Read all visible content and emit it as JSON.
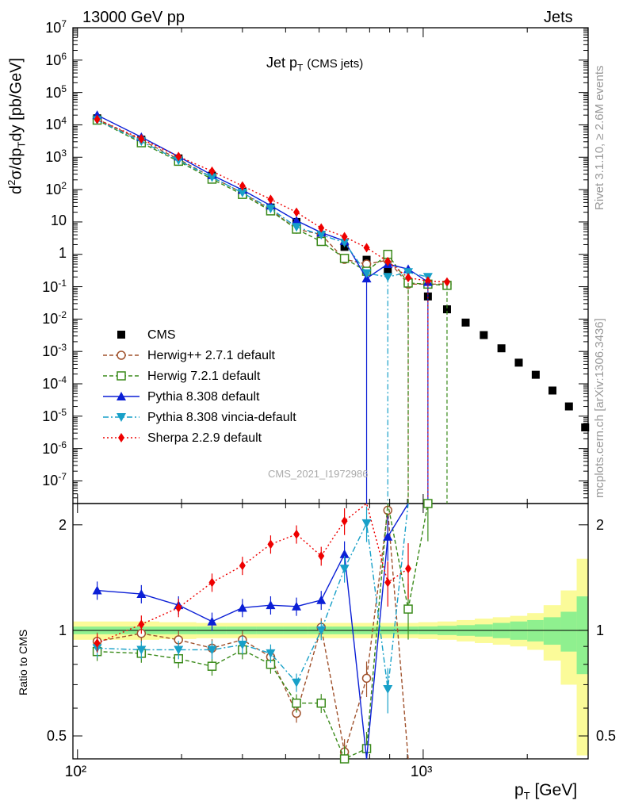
{
  "header": {
    "left_label": "13000 GeV pp",
    "right_label": "Jets"
  },
  "side": {
    "rivet": "Rivet 3.1.10, ≥ 2.6M events",
    "source": "mcplots.cern.ch [arXiv:1306.3436]"
  },
  "watermark": "CMS_2021_I1972986",
  "colors": {
    "cms": "#000000",
    "herwigpp": "#a0522d",
    "herwig7": "#3a8a1a",
    "pythia": "#0b1fd6",
    "vincia": "#18a0c8",
    "sherpa": "#ee0000",
    "band_inner": "#8ff08f",
    "band_outer": "#fbfb99"
  },
  "chart_data": [
    {
      "type": "scatter",
      "title": "Jet p_T (CMS jets)",
      "title_parts": {
        "main": "Jet p",
        "sub": "T",
        "suffix": "(CMS jets)"
      },
      "ylabel": "d²σ/dp_T dy [pb/GeV]",
      "yscale": "log",
      "xscale": "log",
      "xlim": [
        97,
        3000
      ],
      "ylim": [
        2e-08,
        10000000.0
      ],
      "y_ticks": [
        "10^7",
        "10^6",
        "10^5",
        "10^4",
        "10^3",
        "10^2",
        "10",
        "1",
        "10^-1",
        "10^-2",
        "10^-3",
        "10^-4",
        "10^-5",
        "10^-6",
        "10^-7"
      ],
      "legend_placement": "lower-left",
      "series": [
        {
          "name": "CMS",
          "key": "cms",
          "marker": "square",
          "line": "none",
          "points": [
            [
              114,
              16000
            ],
            [
              153,
              3500
            ],
            [
              196,
              920
            ],
            [
              245,
              270
            ],
            [
              300,
              85
            ],
            [
              362,
              28
            ],
            [
              430,
              10
            ],
            [
              507,
              4.0
            ],
            [
              592,
              1.7
            ],
            [
              686,
              0.68
            ],
            [
              790,
              0.3
            ],
            [
              905,
              0.13
            ],
            [
              1032,
              0.05
            ],
            [
              1172,
              0.02
            ],
            [
              1327,
              0.0078
            ],
            [
              1497,
              0.0032
            ],
            [
              1684,
              0.00125
            ],
            [
              1890,
              0.00045
            ],
            [
              2116,
              0.00019
            ],
            [
              2366,
              6.2e-05
            ],
            [
              2640,
              2e-05
            ],
            [
              2941,
              4.5e-06
            ]
          ]
        },
        {
          "name": "Herwig++ 2.7.1 default",
          "key": "herwigpp",
          "marker": "circle-open",
          "line": "dashed",
          "points": [
            [
              114,
              15000
            ],
            [
              153,
              3400
            ],
            [
              196,
              870
            ],
            [
              245,
              240
            ],
            [
              300,
              80
            ],
            [
              362,
              24
            ],
            [
              430,
              6.0
            ],
            [
              507,
              4.1
            ],
            [
              592,
              0.7
            ],
            [
              686,
              0.5
            ],
            [
              790,
              0.66
            ],
            [
              905,
              0.12
            ],
            [
              1032,
              0.12
            ],
            [
              1172,
              0.12
            ]
          ]
        },
        {
          "name": "Herwig 7.2.1 default",
          "key": "herwig7",
          "marker": "square-open",
          "line": "dashed",
          "points": [
            [
              114,
              14000
            ],
            [
              153,
              2800
            ],
            [
              196,
              750
            ],
            [
              245,
              210
            ],
            [
              300,
              71
            ],
            [
              362,
              22
            ],
            [
              430,
              6.0
            ],
            [
              507,
              2.5
            ],
            [
              592,
              0.75
            ],
            [
              686,
              0.3
            ],
            [
              790,
              1.0
            ],
            [
              905,
              0.13
            ],
            [
              1032,
              0.12
            ],
            [
              1172,
              0.11
            ]
          ]
        },
        {
          "name": "Pythia 8.308 default",
          "key": "pythia",
          "marker": "triangle-up",
          "line": "solid",
          "points": [
            [
              114,
              20000
            ],
            [
              153,
              4200
            ],
            [
              196,
              1050
            ],
            [
              245,
              280
            ],
            [
              300,
              98
            ],
            [
              362,
              32
            ],
            [
              430,
              11
            ],
            [
              507,
              4.7
            ],
            [
              592,
              2.6
            ],
            [
              686,
              0.18
            ],
            [
              790,
              0.5
            ],
            [
              905,
              0.35
            ],
            [
              1032,
              0.14
            ]
          ]
        },
        {
          "name": "Pythia 8.308 vincia-default",
          "key": "vincia",
          "marker": "triangle-down",
          "line": "dashdot",
          "points": [
            [
              114,
              14000
            ],
            [
              153,
              3100
            ],
            [
              196,
              800
            ],
            [
              245,
              240
            ],
            [
              300,
              80
            ],
            [
              362,
              26
            ],
            [
              430,
              7.0
            ],
            [
              507,
              4.0
            ],
            [
              592,
              2.3
            ],
            [
              686,
              0.26
            ],
            [
              790,
              0.2
            ],
            [
              905,
              0.28
            ],
            [
              1032,
              0.2
            ]
          ]
        },
        {
          "name": "Sherpa 2.2.9 default",
          "key": "sherpa",
          "marker": "diamond",
          "line": "dotted",
          "points": [
            [
              114,
              14800
            ],
            [
              153,
              3700
            ],
            [
              196,
              1050
            ],
            [
              245,
              370
            ],
            [
              300,
              130
            ],
            [
              362,
              50
            ],
            [
              430,
              20
            ],
            [
              507,
              6.5
            ],
            [
              592,
              3.5
            ],
            [
              686,
              1.6
            ],
            [
              790,
              0.6
            ],
            [
              905,
              0.19
            ],
            [
              1032,
              0.15
            ],
            [
              1172,
              0.14
            ]
          ]
        }
      ]
    },
    {
      "type": "line",
      "ylabel": "Ratio to CMS",
      "xlabel": "p_T [GeV]",
      "xlabel_parts": {
        "main": "p",
        "sub": "T",
        "suffix": " [GeV]"
      },
      "xscale": "log",
      "xlim": [
        97,
        3000
      ],
      "ylim": [
        0.43,
        2.3
      ],
      "y_ticks": [
        "0.5",
        "1",
        "2"
      ],
      "x_ticks": [
        "10²",
        "10³"
      ],
      "reference_line": 1,
      "uncertainty_band": {
        "edges": [
          97,
          130,
          172,
          220,
          270,
          330,
          395,
          465,
          548,
          640,
          740,
          850,
          968,
          1100,
          1250,
          1410,
          1590,
          1785,
          2000,
          2230,
          2500,
          2780,
          3000
        ],
        "inner_halfwidth": [
          0.025,
          0.025,
          0.025,
          0.025,
          0.025,
          0.025,
          0.025,
          0.025,
          0.025,
          0.025,
          0.025,
          0.025,
          0.026,
          0.03,
          0.035,
          0.04,
          0.05,
          0.06,
          0.07,
          0.09,
          0.13,
          0.25
        ],
        "outer_halfwidth": [
          0.06,
          0.06,
          0.055,
          0.05,
          0.05,
          0.05,
          0.05,
          0.05,
          0.05,
          0.05,
          0.05,
          0.05,
          0.055,
          0.06,
          0.07,
          0.08,
          0.09,
          0.1,
          0.12,
          0.18,
          0.3,
          0.6
        ]
      },
      "series": [
        {
          "name": "Herwig++ 2.7.1 default",
          "key": "herwigpp",
          "points": [
            [
              114,
              0.93
            ],
            [
              153,
              0.98
            ],
            [
              196,
              0.94
            ],
            [
              245,
              0.89
            ],
            [
              300,
              0.94
            ],
            [
              362,
              0.84
            ],
            [
              430,
              0.58
            ],
            [
              507,
              1.02
            ],
            [
              592,
              0.45
            ],
            [
              686,
              0.73
            ],
            [
              790,
              2.2
            ],
            [
              905,
              0.0
            ]
          ]
        },
        {
          "name": "Herwig 7.2.1 default",
          "key": "herwig7",
          "points": [
            [
              114,
              0.87
            ],
            [
              153,
              0.86
            ],
            [
              196,
              0.83
            ],
            [
              245,
              0.79
            ],
            [
              300,
              0.88
            ],
            [
              362,
              0.8
            ],
            [
              430,
              0.62
            ],
            [
              507,
              0.62
            ],
            [
              592,
              0.43
            ],
            [
              686,
              0.46
            ],
            [
              790,
              3.0
            ],
            [
              905,
              1.15
            ],
            [
              1032,
              2.3
            ]
          ]
        },
        {
          "name": "Pythia 8.308 default",
          "key": "pythia",
          "points": [
            [
              114,
              1.3
            ],
            [
              153,
              1.27
            ],
            [
              196,
              1.18
            ],
            [
              245,
              1.06
            ],
            [
              300,
              1.16
            ],
            [
              362,
              1.18
            ],
            [
              430,
              1.17
            ],
            [
              507,
              1.22
            ],
            [
              592,
              1.65
            ],
            [
              686,
              0.2
            ],
            [
              790,
              1.85
            ],
            [
              905,
              2.6
            ]
          ]
        },
        {
          "name": "Pythia 8.308 vincia-default",
          "key": "vincia",
          "points": [
            [
              114,
              0.89
            ],
            [
              153,
              0.88
            ],
            [
              196,
              0.88
            ],
            [
              245,
              0.88
            ],
            [
              300,
              0.91
            ],
            [
              362,
              0.86
            ],
            [
              430,
              0.71
            ],
            [
              507,
              1.0
            ],
            [
              592,
              1.5
            ],
            [
              686,
              2.02
            ],
            [
              790,
              0.68
            ],
            [
              905,
              2.4
            ]
          ]
        },
        {
          "name": "Sherpa 2.2.9 default",
          "key": "sherpa",
          "points": [
            [
              114,
              0.92
            ],
            [
              153,
              1.04
            ],
            [
              196,
              1.16
            ],
            [
              245,
              1.37
            ],
            [
              300,
              1.53
            ],
            [
              362,
              1.76
            ],
            [
              430,
              1.88
            ],
            [
              507,
              1.63
            ],
            [
              592,
              2.05
            ],
            [
              686,
              2.35
            ],
            [
              790,
              1.37
            ],
            [
              905,
              1.5
            ]
          ]
        }
      ]
    }
  ]
}
